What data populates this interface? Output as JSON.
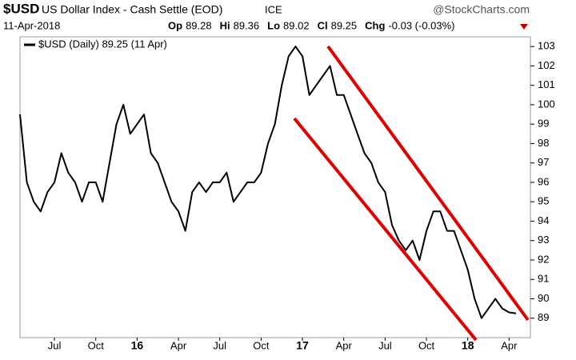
{
  "chart_data": {
    "type": "line",
    "symbol": "$USD",
    "title": "US Dollar Index - Cash Settle (EOD)",
    "exchange": "ICE",
    "source": "@StockCharts.com",
    "date": "11-Apr-2018",
    "stats": [
      {
        "label": "Op",
        "value": "89.28"
      },
      {
        "label": "Hi",
        "value": "89.36"
      },
      {
        "label": "Lo",
        "value": "89.02"
      },
      {
        "label": "Cl",
        "value": "89.25"
      },
      {
        "label": "Chg",
        "value": "-0.03 (-0.03%)"
      }
    ],
    "categories": [
      null,
      null,
      null,
      null,
      null,
      "Jul",
      null,
      null,
      null,
      null,
      null,
      "Oct",
      null,
      null,
      null,
      null,
      null,
      "16",
      null,
      null,
      null,
      null,
      null,
      "Apr",
      null,
      null,
      null,
      null,
      null,
      "Jul",
      null,
      null,
      null,
      null,
      null,
      "Oct",
      null,
      null,
      null,
      null,
      null,
      "17",
      null,
      null,
      null,
      null,
      null,
      "Apr",
      null,
      null,
      null,
      null,
      null,
      "Jul",
      null,
      null,
      null,
      null,
      null,
      "Oct",
      null,
      null,
      null,
      null,
      null,
      "18",
      null,
      null,
      null,
      null,
      null,
      "Apr",
      null
    ],
    "series": [
      {
        "name": "$USD (Daily) 89.25 (11 Apr)",
        "color": "#000000",
        "values": [
          99.5,
          96,
          95,
          94.5,
          95.5,
          96,
          97.5,
          96.5,
          96,
          95,
          96,
          96,
          95,
          97,
          99,
          100,
          98.5,
          99,
          99.5,
          97.5,
          97,
          96,
          95,
          94.5,
          93.5,
          95.5,
          96,
          95.5,
          96,
          96,
          96.5,
          95,
          95.5,
          96,
          96,
          96.5,
          98,
          99,
          101,
          102.5,
          103,
          102.5,
          100.5,
          101,
          101.5,
          102,
          100.5,
          100.5,
          99.5,
          98.5,
          97.5,
          97,
          96,
          95.5,
          93.8,
          93,
          92.5,
          93,
          92,
          93.5,
          94.5,
          94.5,
          93.5,
          93.5,
          92.5,
          91.5,
          90,
          89,
          89.5,
          90,
          89.5,
          89.3,
          89.25
        ]
      }
    ],
    "ylim": [
      88,
      103.5
    ],
    "yticks": [
      89,
      90,
      91,
      92,
      93,
      94,
      95,
      96,
      97,
      98,
      99,
      100,
      101,
      102,
      103
    ],
    "grid": false
  }
}
